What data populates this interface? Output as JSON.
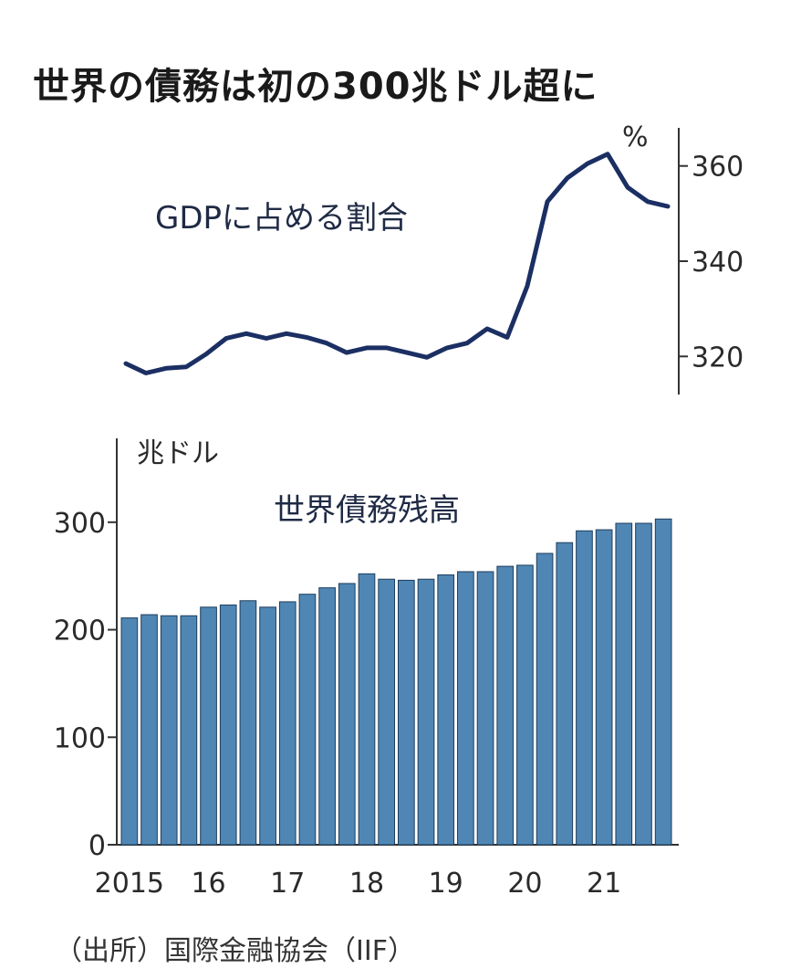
{
  "title": "世界の債務は初の300兆ドル超に",
  "source": "（出所）国際金融協会（IIF）",
  "colors": {
    "line": "#1b2f63",
    "bar": "#4f86b4",
    "bar_edge": "#1f3d5c",
    "axis": "#333333"
  },
  "chart_data": [
    {
      "type": "line",
      "title": "GDPに占める割合",
      "unit": "%",
      "y_axis_side": "right",
      "yticks": [
        320,
        340,
        360
      ],
      "ylim": [
        312,
        368
      ],
      "x": [
        0,
        1,
        2,
        3,
        4,
        5,
        6,
        7,
        8,
        9,
        10,
        11,
        12,
        13,
        14,
        15,
        16,
        17,
        18,
        19,
        20,
        21,
        22,
        23,
        24,
        25,
        26,
        27
      ],
      "values": [
        318.5,
        316.5,
        317.5,
        317.8,
        320.5,
        323.8,
        324.8,
        323.8,
        324.8,
        324.0,
        322.8,
        320.8,
        321.8,
        321.8,
        320.8,
        319.8,
        321.8,
        322.8,
        325.8,
        324.0,
        334.8,
        352.5,
        357.5,
        360.5,
        362.5,
        355.5,
        352.5,
        351.5
      ]
    },
    {
      "type": "bar",
      "title": "世界債務残高",
      "unit": "兆ドル",
      "y_axis_side": "left",
      "yticks": [
        0,
        100,
        200,
        300
      ],
      "ylim": [
        0,
        378
      ],
      "x_tick_labels": [
        "2015",
        "16",
        "17",
        "18",
        "19",
        "20",
        "21"
      ],
      "values": [
        211,
        214,
        213,
        213,
        221,
        223,
        227,
        221,
        226,
        233,
        239,
        243,
        252,
        247,
        246,
        247,
        251,
        254,
        254,
        259,
        260,
        271,
        281,
        292,
        293,
        299,
        299,
        303
      ]
    }
  ]
}
